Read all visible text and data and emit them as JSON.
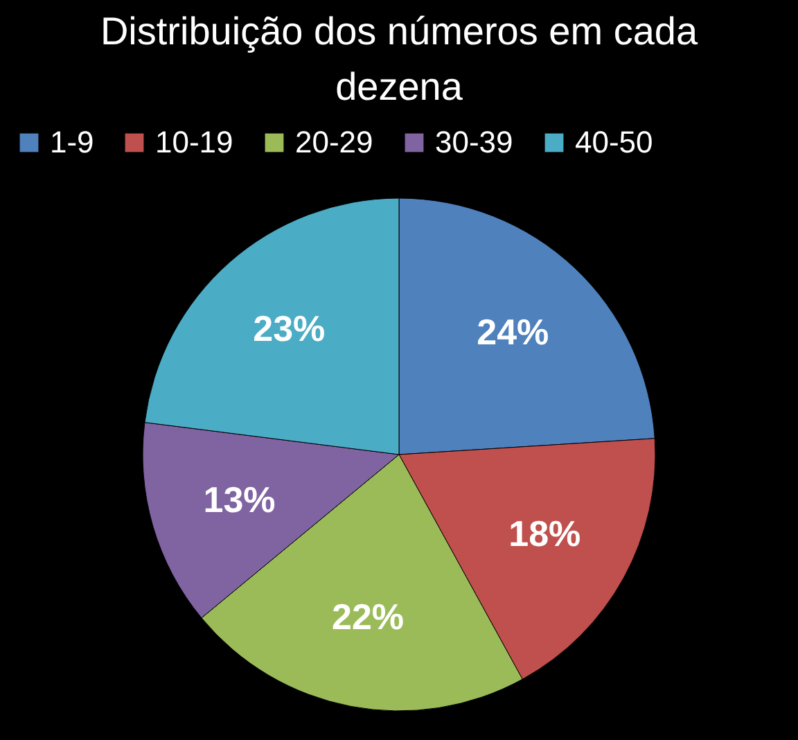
{
  "chart_data": {
    "type": "pie",
    "title": "Distribuição dos números em cada dezena",
    "categories": [
      "1-9",
      "10-19",
      "20-29",
      "30-39",
      "40-50"
    ],
    "values": [
      24,
      18,
      22,
      13,
      23
    ],
    "colors": [
      "#4f81bd",
      "#c0504d",
      "#9bbb59",
      "#8064a2",
      "#4bacc6"
    ],
    "value_labels": [
      "24%",
      "18%",
      "22%",
      "13%",
      "23%"
    ],
    "legend": "top"
  }
}
